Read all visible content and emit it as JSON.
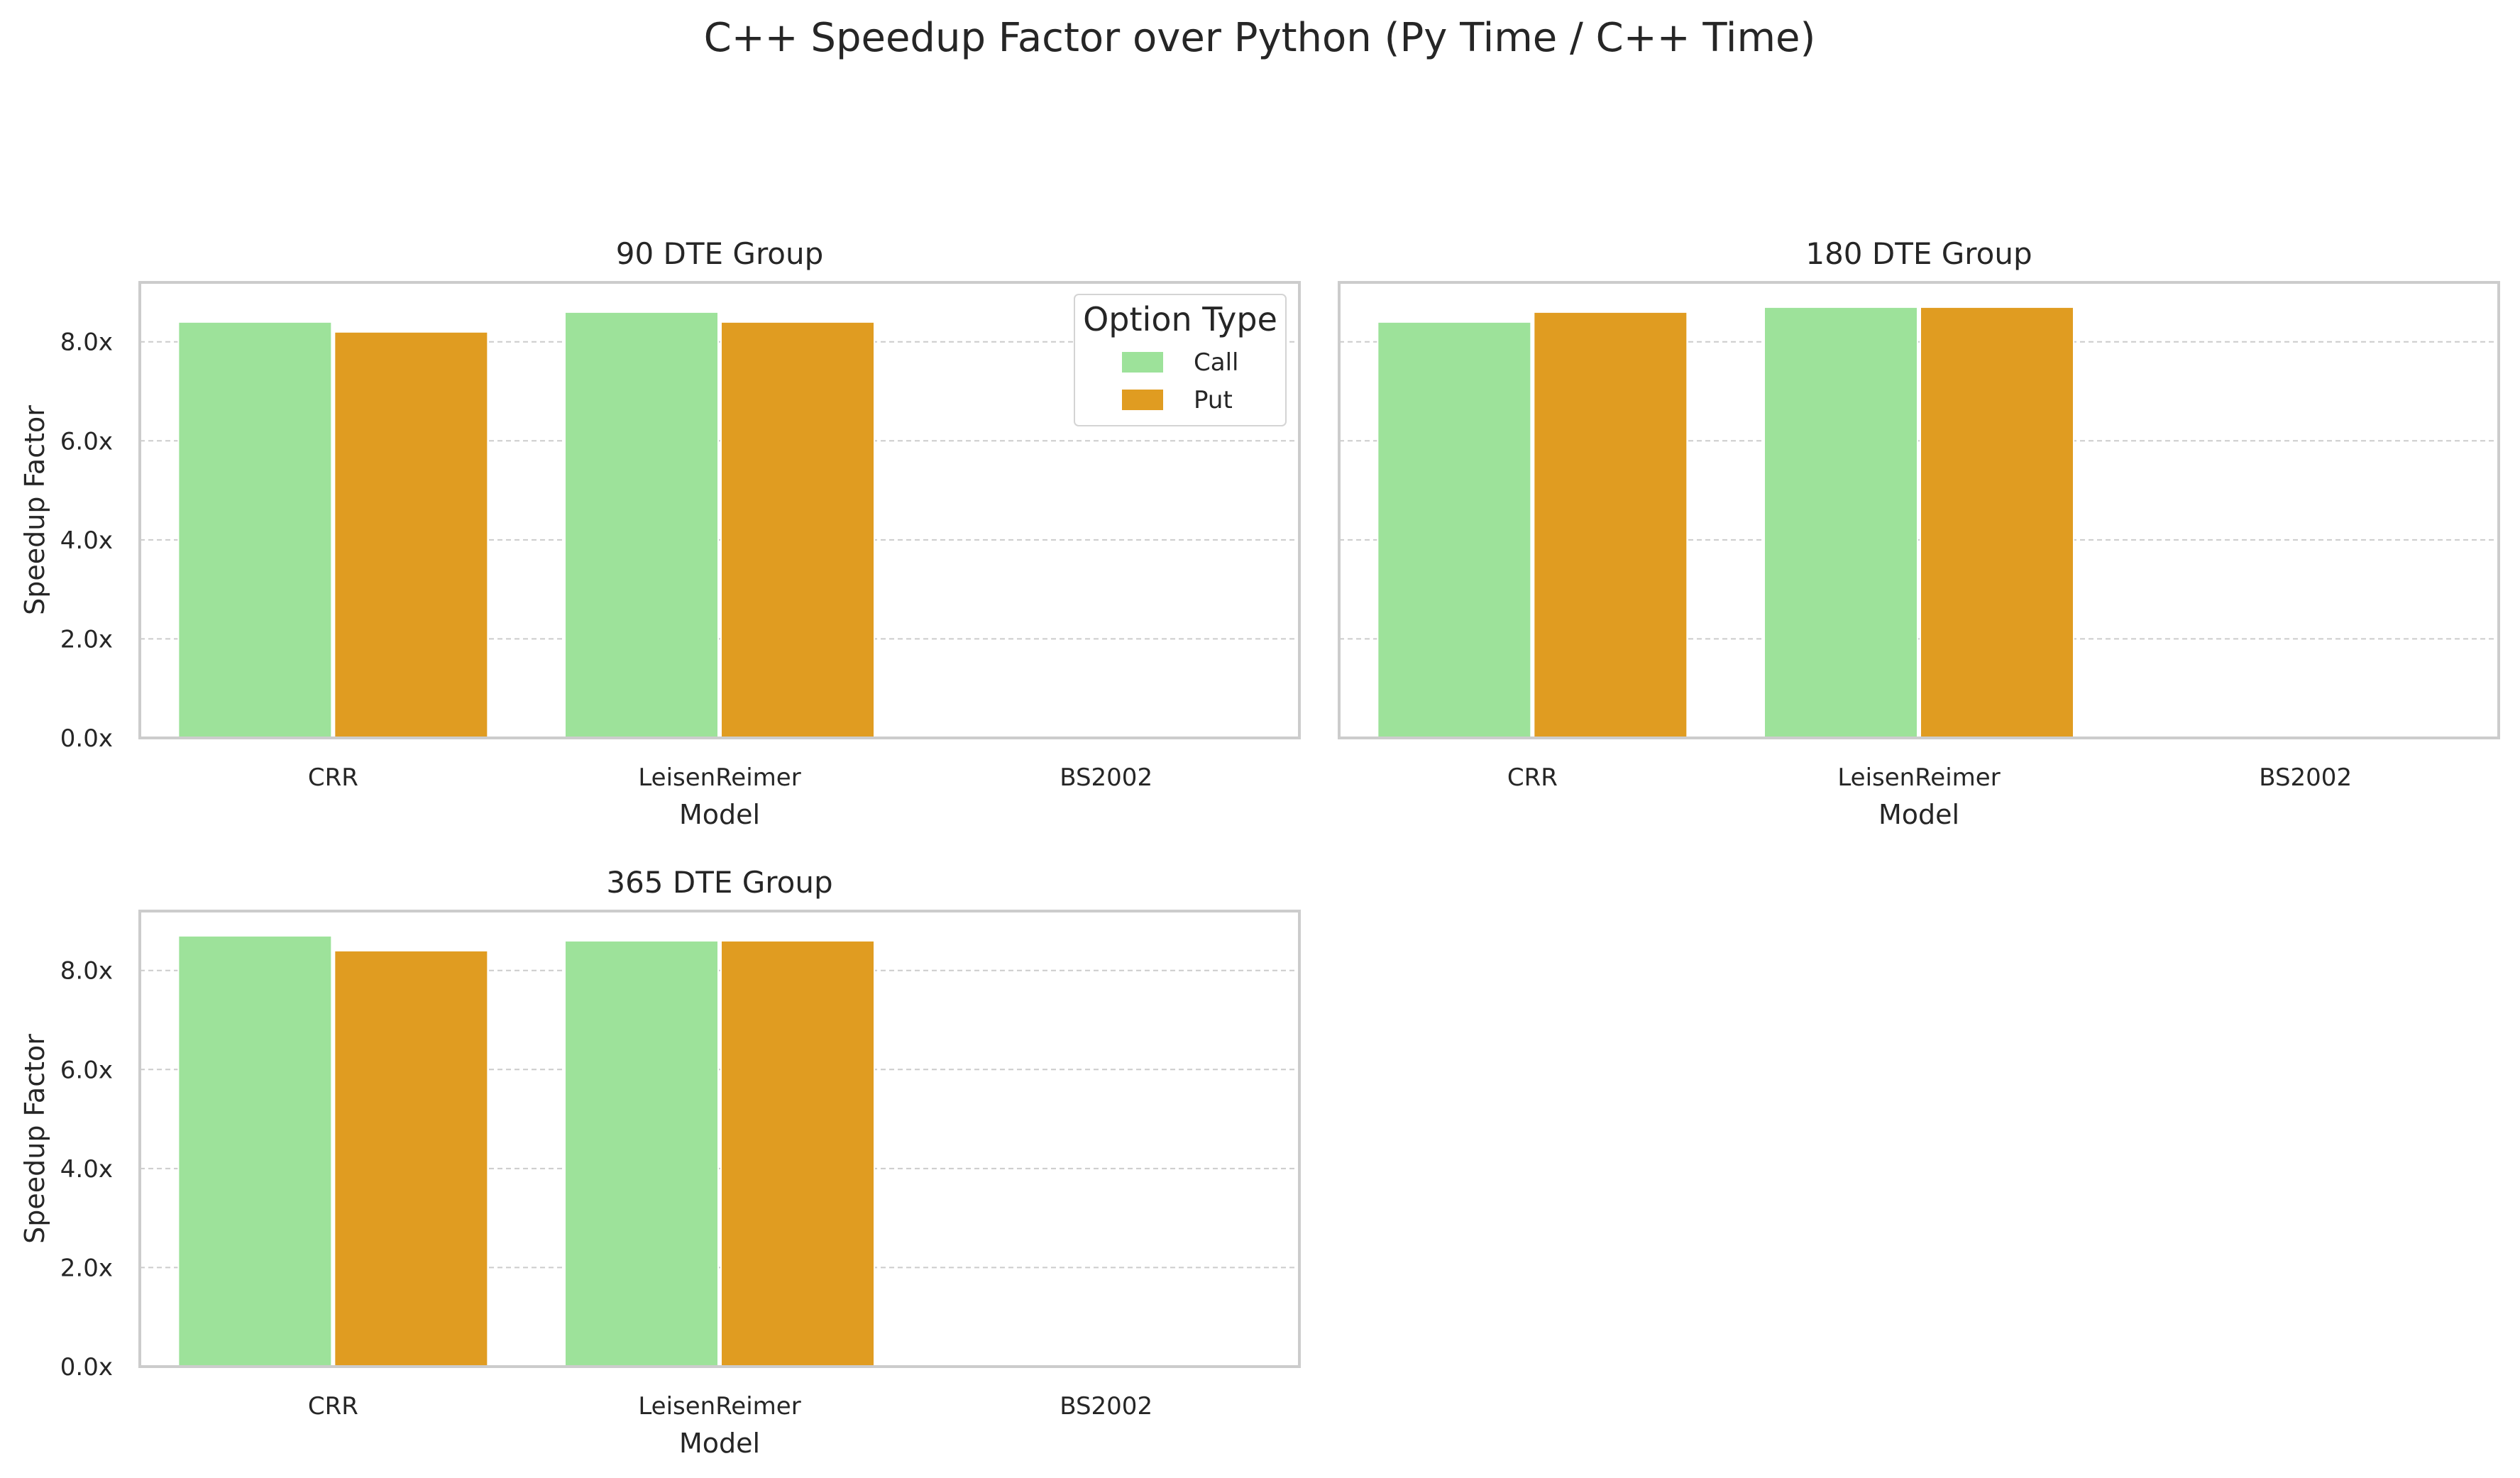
{
  "chart_data": {
    "type": "bar",
    "title": "C++ Speedup Factor over Python (Py Time / C++ Time)",
    "xlabel": "Model",
    "ylabel": "Speedup Factor",
    "categories": [
      "CRR",
      "LeisenReimer",
      "BS2002"
    ],
    "ylim": [
      0,
      9.2
    ],
    "yticks": [
      "0.0x",
      "2.0x",
      "4.0x",
      "6.0x",
      "8.0x"
    ],
    "ytick_values": [
      0,
      2,
      4,
      6,
      8
    ],
    "grid": "y-dashed",
    "legend": {
      "title": "Option Type",
      "placement": "top-right",
      "entries": [
        "Call",
        "Put"
      ]
    },
    "colors": {
      "Call": "#9de29a",
      "Put": "#e09c21"
    },
    "panels": [
      {
        "title": "90 DTE Group",
        "series": [
          {
            "name": "Call",
            "values": [
              8.4,
              8.6,
              0
            ]
          },
          {
            "name": "Put",
            "values": [
              8.2,
              8.4,
              0
            ]
          }
        ]
      },
      {
        "title": "180 DTE Group",
        "series": [
          {
            "name": "Call",
            "values": [
              8.4,
              8.7,
              0
            ]
          },
          {
            "name": "Put",
            "values": [
              8.6,
              8.7,
              0
            ]
          }
        ]
      },
      {
        "title": "365 DTE Group",
        "series": [
          {
            "name": "Call",
            "values": [
              8.7,
              8.6,
              0
            ]
          },
          {
            "name": "Put",
            "values": [
              8.4,
              8.6,
              0
            ]
          }
        ]
      }
    ]
  }
}
